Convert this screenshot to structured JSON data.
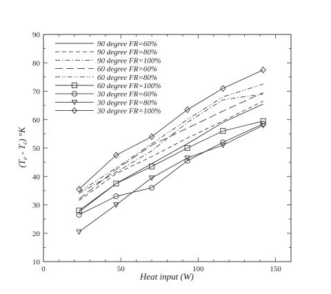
{
  "chart_data": {
    "type": "line",
    "xlabel": "Heat input (W)",
    "ylabel": {
      "prefix": "(T",
      "sub1": "e",
      "mid": " - T",
      "sub2": "c",
      "suffix": ") °K"
    },
    "xlim": [
      0,
      160
    ],
    "ylim": [
      10,
      90
    ],
    "xticks": [
      0,
      50,
      100,
      150
    ],
    "yticks": [
      10,
      20,
      30,
      40,
      50,
      60,
      70,
      80,
      90
    ],
    "grid": false,
    "legend_position": "top-left",
    "x": [
      23,
      47,
      70,
      93,
      116,
      142
    ],
    "series": [
      {
        "name": "90 degree  FR=60%",
        "values": [
          27.5,
          37.5,
          44.5,
          51.5,
          59.0,
          65.5
        ],
        "dash": "solid",
        "marker": "none"
      },
      {
        "name": "90 degree  FR=80%",
        "values": [
          31.5,
          41.0,
          47.0,
          53.5,
          59.5,
          66.5
        ],
        "dash": "dash",
        "marker": "none"
      },
      {
        "name": "90 degree  FR=100%",
        "values": [
          34.0,
          41.5,
          49.0,
          59.0,
          67.0,
          69.0
        ],
        "dash": "dashdot",
        "marker": "none"
      },
      {
        "name": "60 degree  FR=60%",
        "values": [
          32.0,
          42.5,
          51.0,
          57.0,
          63.0,
          69.5
        ],
        "dash": "longdash",
        "marker": "none"
      },
      {
        "name": "60 degree  FR=80%",
        "values": [
          34.5,
          43.0,
          51.5,
          60.0,
          68.0,
          72.5
        ],
        "dash": "dashdotdot",
        "marker": "none"
      },
      {
        "name": "60 degree  FR=100%",
        "values": [
          28.0,
          37.5,
          43.5,
          50.0,
          56.0,
          59.5
        ],
        "dash": "solid",
        "marker": "square"
      },
      {
        "name": "30 degree  FR=60%",
        "values": [
          26.5,
          33.0,
          36.0,
          45.5,
          52.0,
          58.5
        ],
        "dash": "solid",
        "marker": "circle"
      },
      {
        "name": "30 degree  FR=80%",
        "values": [
          20.5,
          30.0,
          39.5,
          46.5,
          51.0,
          58.0
        ],
        "dash": "solid",
        "marker": "triangle-down"
      },
      {
        "name": "30 degree  FR=100%",
        "values": [
          35.5,
          47.5,
          54.0,
          63.5,
          71.0,
          77.5
        ],
        "dash": "solid",
        "marker": "diamond"
      }
    ]
  }
}
